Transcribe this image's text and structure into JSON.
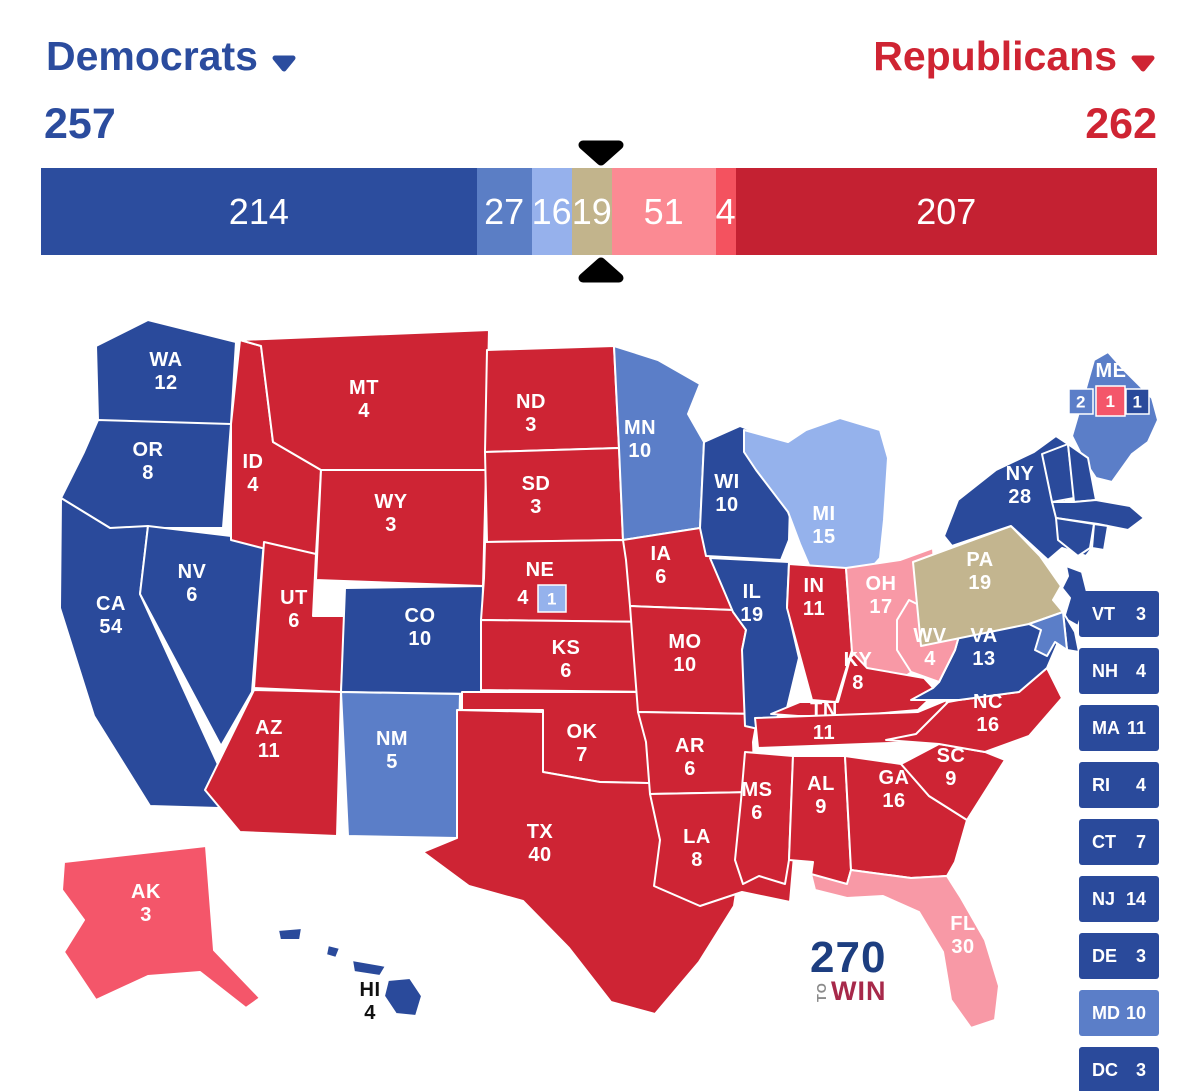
{
  "header": {
    "democrats": {
      "label": "Democrats",
      "total": "257",
      "color": "#2b4c9e"
    },
    "republicans": {
      "label": "Republicans",
      "total": "262",
      "color": "#cf2433"
    }
  },
  "bar": {
    "total_votes": 538,
    "segments": [
      {
        "key": "safe-dem",
        "label": "214",
        "value": 214,
        "color": "#2c4d9e"
      },
      {
        "key": "likely-dem",
        "label": "27",
        "value": 27,
        "color": "#5b7ec5"
      },
      {
        "key": "lean-dem",
        "label": "16",
        "value": 16,
        "color": "#96b1ec"
      },
      {
        "key": "tossup",
        "label": "19",
        "value": 19,
        "color": "#c2b48c"
      },
      {
        "key": "lean-rep",
        "label": "51",
        "value": 51,
        "color": "#fb8a93"
      },
      {
        "key": "likely-rep",
        "label": "4",
        "value": 4,
        "color": "#f4525f"
      },
      {
        "key": "safe-rep",
        "label": "207",
        "value": 207,
        "color": "#c42132"
      }
    ]
  },
  "map": {
    "status_colors": {
      "safe_dem": "#2a4a9b",
      "likely_dem": "#5b7ec8",
      "lean_dem": "#95b2ec",
      "tossup": "#c3b58f",
      "lean_rep": "#f899a6",
      "likely_rep": "#f4566a",
      "safe_rep": "#ce2434"
    },
    "states": [
      {
        "abbr": "WA",
        "votes": 12,
        "status": "safe_dem"
      },
      {
        "abbr": "OR",
        "votes": 8,
        "status": "safe_dem"
      },
      {
        "abbr": "CA",
        "votes": 54,
        "status": "safe_dem"
      },
      {
        "abbr": "NV",
        "votes": 6,
        "status": "safe_dem"
      },
      {
        "abbr": "ID",
        "votes": 4,
        "status": "safe_rep"
      },
      {
        "abbr": "MT",
        "votes": 4,
        "status": "safe_rep"
      },
      {
        "abbr": "WY",
        "votes": 3,
        "status": "safe_rep"
      },
      {
        "abbr": "UT",
        "votes": 6,
        "status": "safe_rep"
      },
      {
        "abbr": "CO",
        "votes": 10,
        "status": "safe_dem"
      },
      {
        "abbr": "AZ",
        "votes": 11,
        "status": "safe_rep"
      },
      {
        "abbr": "NM",
        "votes": 5,
        "status": "likely_dem"
      },
      {
        "abbr": "ND",
        "votes": 3,
        "status": "safe_rep"
      },
      {
        "abbr": "SD",
        "votes": 3,
        "status": "safe_rep"
      },
      {
        "abbr": "NE",
        "votes": 4,
        "status": "safe_rep"
      },
      {
        "abbr": "KS",
        "votes": 6,
        "status": "safe_rep"
      },
      {
        "abbr": "OK",
        "votes": 7,
        "status": "safe_rep"
      },
      {
        "abbr": "TX",
        "votes": 40,
        "status": "safe_rep"
      },
      {
        "abbr": "MN",
        "votes": 10,
        "status": "likely_dem"
      },
      {
        "abbr": "IA",
        "votes": 6,
        "status": "safe_rep"
      },
      {
        "abbr": "MO",
        "votes": 10,
        "status": "safe_rep"
      },
      {
        "abbr": "AR",
        "votes": 6,
        "status": "safe_rep"
      },
      {
        "abbr": "LA",
        "votes": 8,
        "status": "safe_rep"
      },
      {
        "abbr": "WI",
        "votes": 10,
        "status": "safe_dem"
      },
      {
        "abbr": "IL",
        "votes": 19,
        "status": "safe_dem"
      },
      {
        "abbr": "MI",
        "votes": 15,
        "status": "lean_dem"
      },
      {
        "abbr": "IN",
        "votes": 11,
        "status": "safe_rep"
      },
      {
        "abbr": "OH",
        "votes": 17,
        "status": "lean_rep"
      },
      {
        "abbr": "KY",
        "votes": 8,
        "status": "safe_rep"
      },
      {
        "abbr": "TN",
        "votes": 11,
        "status": "safe_rep"
      },
      {
        "abbr": "MS",
        "votes": 6,
        "status": "safe_rep"
      },
      {
        "abbr": "AL",
        "votes": 9,
        "status": "safe_rep"
      },
      {
        "abbr": "GA",
        "votes": 16,
        "status": "safe_rep"
      },
      {
        "abbr": "FL",
        "votes": 30,
        "status": "lean_rep"
      },
      {
        "abbr": "SC",
        "votes": 9,
        "status": "safe_rep"
      },
      {
        "abbr": "NC",
        "votes": 16,
        "status": "safe_rep"
      },
      {
        "abbr": "VA",
        "votes": 13,
        "status": "safe_dem"
      },
      {
        "abbr": "WV",
        "votes": 4,
        "status": "lean_rep"
      },
      {
        "abbr": "PA",
        "votes": 19,
        "status": "tossup"
      },
      {
        "abbr": "NY",
        "votes": 28,
        "status": "safe_dem"
      },
      {
        "abbr": "ME",
        "votes": 2,
        "status": "likely_dem"
      },
      {
        "abbr": "VT",
        "votes": 3,
        "status": "safe_dem"
      },
      {
        "abbr": "NH",
        "votes": 4,
        "status": "safe_dem"
      },
      {
        "abbr": "MA",
        "votes": 11,
        "status": "safe_dem"
      },
      {
        "abbr": "CT",
        "votes": 7,
        "status": "safe_dem"
      },
      {
        "abbr": "RI",
        "votes": 4,
        "status": "safe_dem"
      },
      {
        "abbr": "NJ",
        "votes": 14,
        "status": "safe_dem"
      },
      {
        "abbr": "DE",
        "votes": 3,
        "status": "safe_dem"
      },
      {
        "abbr": "MD",
        "votes": 10,
        "status": "likely_dem"
      },
      {
        "abbr": "AK",
        "votes": 3,
        "status": "likely_rep"
      },
      {
        "abbr": "HI",
        "votes": 4,
        "status": "safe_dem"
      }
    ],
    "ne_district": {
      "label": "1",
      "status": "lean_dem"
    },
    "me_districts": [
      {
        "label": "2",
        "status": "likely_dem"
      },
      {
        "label": "1",
        "status": "likely_rep"
      },
      {
        "label": "1",
        "status": "safe_dem"
      }
    ]
  },
  "side_boxes": [
    {
      "abbr": "VT",
      "votes": "3",
      "status": "safe_dem"
    },
    {
      "abbr": "NH",
      "votes": "4",
      "status": "safe_dem"
    },
    {
      "abbr": "MA",
      "votes": "11",
      "status": "safe_dem"
    },
    {
      "abbr": "RI",
      "votes": "4",
      "status": "safe_dem"
    },
    {
      "abbr": "CT",
      "votes": "7",
      "status": "safe_dem"
    },
    {
      "abbr": "NJ",
      "votes": "14",
      "status": "safe_dem"
    },
    {
      "abbr": "DE",
      "votes": "3",
      "status": "safe_dem"
    },
    {
      "abbr": "MD",
      "votes": "10",
      "status": "likely_dem"
    },
    {
      "abbr": "DC",
      "votes": "3",
      "status": "safe_dem"
    }
  ],
  "logo": {
    "number": "270",
    "to": "TO",
    "win": "WIN"
  }
}
